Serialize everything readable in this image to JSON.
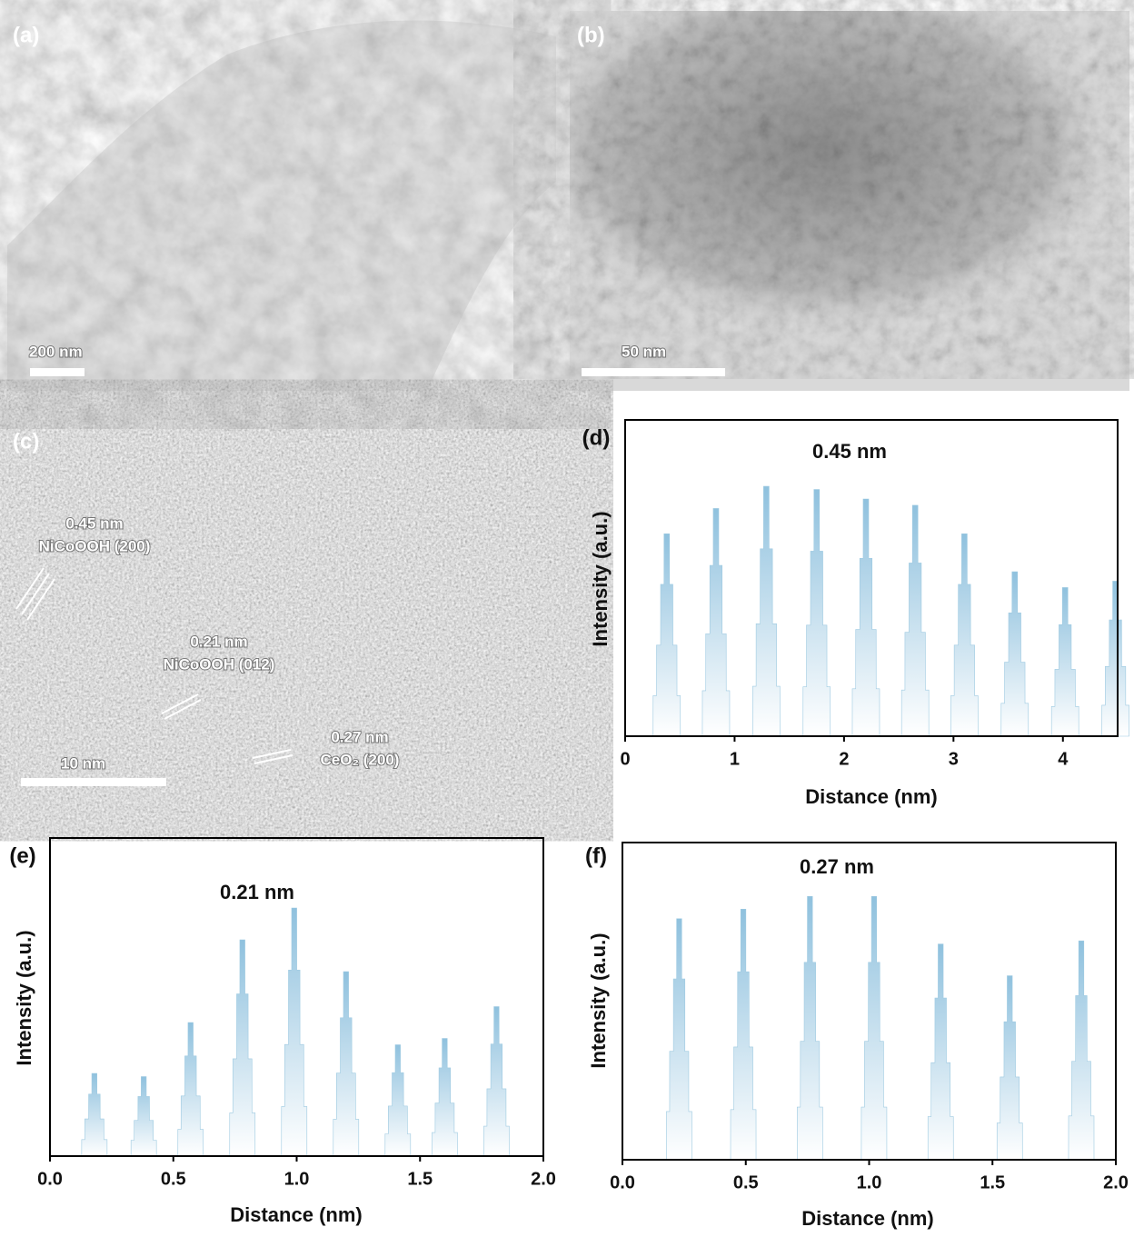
{
  "panels": {
    "a": {
      "label": "(a)",
      "scale_bar": "200 nm"
    },
    "b": {
      "label": "(b)",
      "scale_bar": "50 nm"
    },
    "c": {
      "label": "(c)",
      "scale_bar": "10 nm",
      "annotations": [
        {
          "spacing": "0.45 nm",
          "phase": "NiCoOOH (200)"
        },
        {
          "spacing": "0.21 nm",
          "phase": "NiCoOOH (012)"
        },
        {
          "spacing": "0.27 nm",
          "phase": "CeO₂ (200)"
        }
      ]
    }
  },
  "chart_data": [
    {
      "type": "bar",
      "label": "(d)",
      "title": "0.45 nm",
      "x_label": "Distance (nm)",
      "y_label": "Intensity (a.u.)",
      "x": [
        0.38,
        0.83,
        1.29,
        1.75,
        2.2,
        2.65,
        3.1,
        3.56,
        4.02,
        4.48
      ],
      "values": [
        64,
        72,
        79,
        78,
        75,
        73,
        64,
        52,
        47,
        49
      ],
      "color": "#9ecae1",
      "xlim": [
        0,
        4.5
      ],
      "xticks": [
        0,
        1,
        2,
        3,
        4
      ],
      "ylim": [
        0,
        100
      ]
    },
    {
      "type": "bar",
      "label": "(e)",
      "title": "0.21 nm",
      "x_label": "Distance (nm)",
      "y_label": "Intensity (a.u.)",
      "x": [
        0.18,
        0.38,
        0.57,
        0.78,
        0.99,
        1.2,
        1.41,
        1.6,
        1.81
      ],
      "values": [
        26,
        25,
        42,
        68,
        78,
        58,
        35,
        37,
        47
      ],
      "color": "#9ecae1",
      "xlim": [
        0,
        2
      ],
      "xticks": [
        {
          "value": 0,
          "label": "0.0"
        },
        {
          "value": 0.5,
          "label": "0.5"
        },
        {
          "value": 1,
          "label": "1.0"
        },
        {
          "value": 1.5,
          "label": "1.5"
        },
        {
          "value": 2,
          "label": "2.0"
        }
      ],
      "ylim": [
        0,
        100
      ]
    },
    {
      "type": "bar",
      "label": "(f)",
      "title": "0.27 nm",
      "x_label": "Distance (nm)",
      "y_label": "Intensity (a.u.)",
      "x": [
        0.23,
        0.49,
        0.76,
        1.02,
        1.29,
        1.57,
        1.86
      ],
      "values": [
        76,
        79,
        83,
        83,
        68,
        58,
        69
      ],
      "color": "#9ecae1",
      "xlim": [
        0,
        2
      ],
      "xticks": [
        {
          "value": 0,
          "label": "0.0"
        },
        {
          "value": 0.5,
          "label": "0.5"
        },
        {
          "value": 1,
          "label": "1.0"
        },
        {
          "value": 1.5,
          "label": "1.5"
        },
        {
          "value": 2,
          "label": "2.0"
        }
      ],
      "ylim": [
        0,
        100
      ]
    }
  ]
}
